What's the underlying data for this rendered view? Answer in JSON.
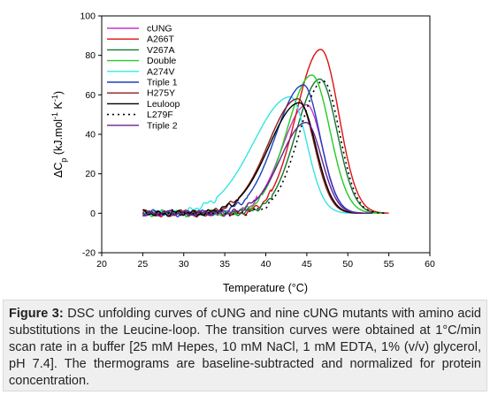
{
  "chart_data": {
    "type": "line",
    "title": "",
    "xlabel": "Temperature (°C)",
    "ylabel_parts": [
      "ΔC",
      "p",
      " (kJ.mol",
      "-1",
      " K",
      "-1",
      ")"
    ],
    "xlim": [
      20,
      60
    ],
    "ylim": [
      -20,
      100
    ],
    "xticks": [
      "20",
      "25",
      "30",
      "35",
      "40",
      "45",
      "50",
      "55",
      "60"
    ],
    "yticks": [
      "-20",
      "0",
      "20",
      "40",
      "60",
      "80",
      "100"
    ],
    "grid": false,
    "legend_position": "top-left",
    "series": [
      {
        "name": "cUNG",
        "color": "#cc33cc",
        "dash": "",
        "center": 45.0,
        "peak": 55,
        "w_left": 3.0,
        "w_right": 1.9,
        "start_T": 25.0,
        "end_T": 52.0
      },
      {
        "name": "A266T",
        "color": "#dd1111",
        "dash": "",
        "center": 46.7,
        "peak": 83,
        "w_left": 3.0,
        "w_right": 2.2,
        "start_T": 25.0,
        "end_T": 55.0
      },
      {
        "name": "V267A",
        "color": "#117733",
        "dash": "",
        "center": 46.6,
        "peak": 68,
        "w_left": 2.9,
        "w_right": 2.1,
        "start_T": 25.0,
        "end_T": 54.5
      },
      {
        "name": "Double",
        "color": "#22cc22",
        "dash": "",
        "center": 45.6,
        "peak": 70,
        "w_left": 3.0,
        "w_right": 2.2,
        "start_T": 25.0,
        "end_T": 54.0
      },
      {
        "name": "A274V",
        "color": "#33e6e6",
        "dash": "",
        "center": 43.0,
        "peak": 59,
        "w_left": 4.5,
        "w_right": 2.0,
        "start_T": 25.0,
        "end_T": 52.0
      },
      {
        "name": "Triple 1",
        "color": "#1f3fbf",
        "dash": "",
        "center": 44.6,
        "peak": 65,
        "w_left": 3.4,
        "w_right": 2.0,
        "start_T": 25.0,
        "end_T": 53.0
      },
      {
        "name": "H275Y",
        "color": "#8a1c1c",
        "dash": "",
        "center": 43.9,
        "peak": 58,
        "w_left": 3.6,
        "w_right": 2.0,
        "start_T": 25.0,
        "end_T": 52.5
      },
      {
        "name": "Leuloop",
        "color": "#000000",
        "dash": "",
        "center": 44.1,
        "peak": 56,
        "w_left": 3.7,
        "w_right": 2.0,
        "start_T": 25.0,
        "end_T": 53.0
      },
      {
        "name": "L279F",
        "color": "#000000",
        "dash": "2,4",
        "center": 47.0,
        "peak": 67,
        "w_left": 2.9,
        "w_right": 2.0,
        "start_T": 26.0,
        "end_T": 54.5
      },
      {
        "name": "Triple 2",
        "color": "#6a1f8f",
        "dash": "",
        "center": 44.9,
        "peak": 46,
        "w_left": 3.1,
        "w_right": 1.9,
        "start_T": 25.0,
        "end_T": 53.0
      }
    ]
  },
  "caption": {
    "label": "Figure 3:",
    "text": " DSC unfolding curves of cUNG and nine cUNG mutants with amino acid substitutions in the Leucine-loop. The transition curves were obtained at 1°C/min scan rate in a buffer [25 mM Hepes, 10 mM NaCl, 1 mM EDTA, 1% (v/v) glycerol, pH 7.4]. The thermograms are baseline-subtracted and normalized for protein concentration."
  }
}
